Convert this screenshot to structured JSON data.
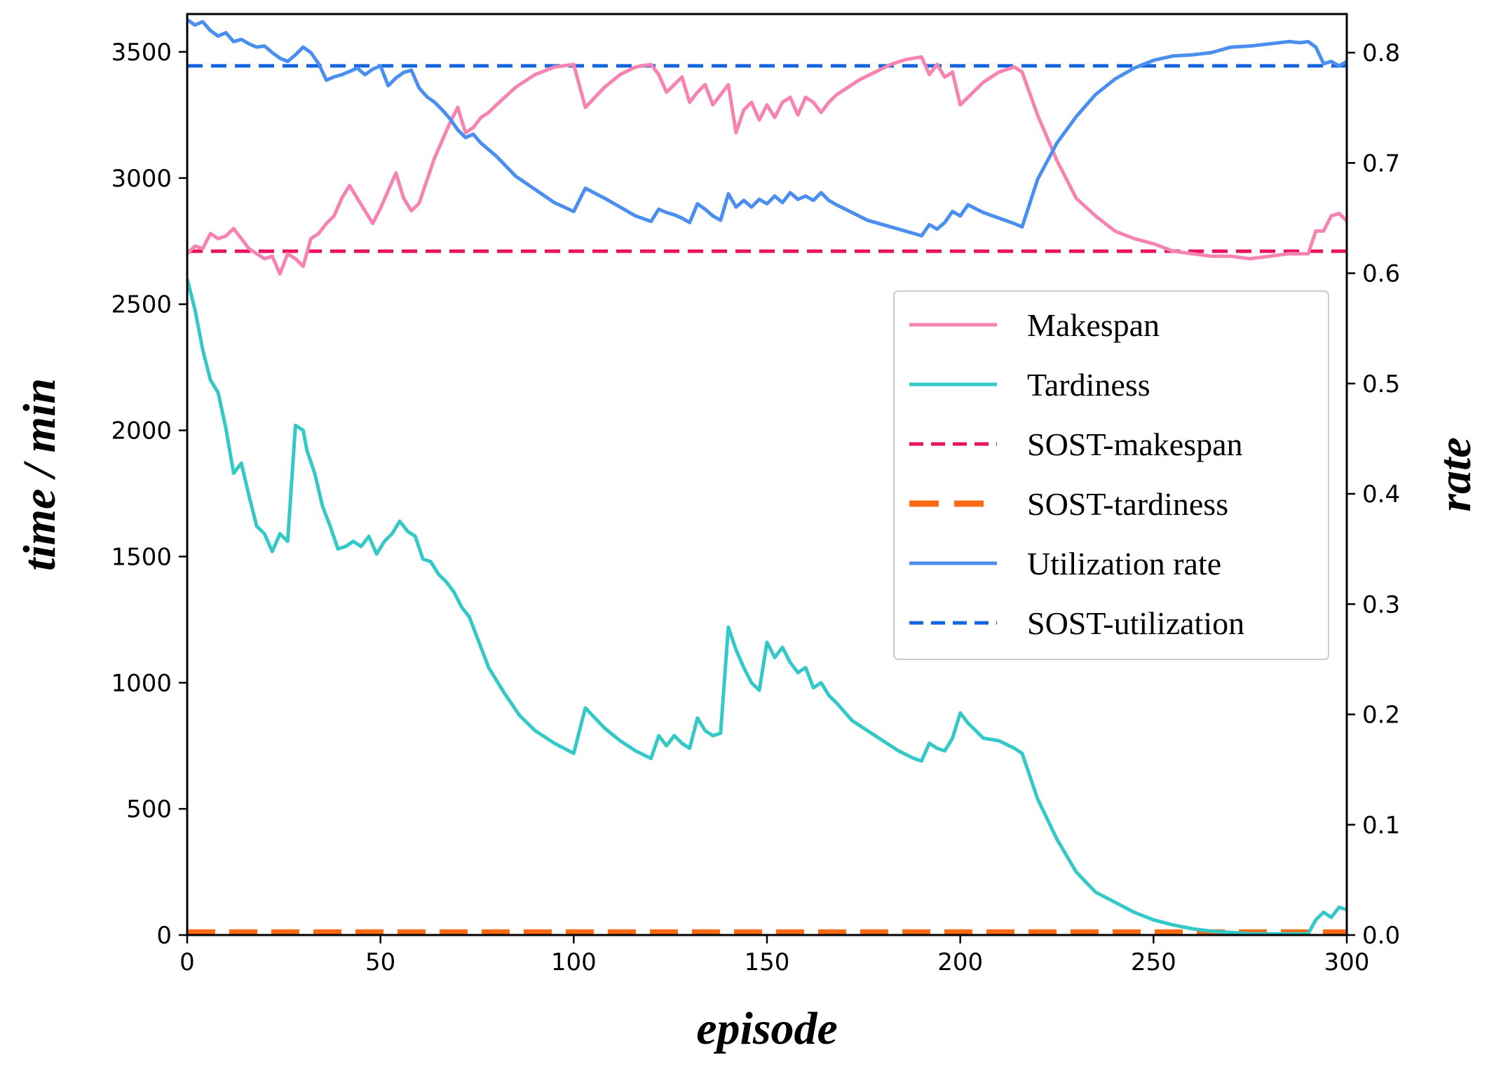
{
  "chart_data": {
    "type": "line",
    "xlabel": "episode",
    "ylabel_left": "time / min",
    "ylabel_right": "rate",
    "xlim": [
      0,
      300
    ],
    "ylim_left": [
      0,
      3650
    ],
    "ylim_right": [
      0,
      0.835
    ],
    "xticks": [
      0,
      50,
      100,
      150,
      200,
      250,
      300
    ],
    "yticks_left": [
      0,
      500,
      1000,
      1500,
      2000,
      2500,
      3000,
      3500
    ],
    "yticks_right": [
      "0.0",
      "0.1",
      "0.2",
      "0.3",
      "0.4",
      "0.5",
      "0.6",
      "0.7",
      "0.8"
    ],
    "legend_position": "center-right",
    "series": [
      {
        "name": "Makespan",
        "axis": "left",
        "color": "#f783b3",
        "style": "solid",
        "x": [
          0,
          2,
          4,
          6,
          8,
          10,
          12,
          14,
          16,
          18,
          20,
          22,
          24,
          26,
          28,
          30,
          32,
          34,
          36,
          38,
          40,
          42,
          44,
          46,
          48,
          50,
          52,
          54,
          56,
          58,
          60,
          62,
          64,
          66,
          68,
          70,
          72,
          74,
          76,
          78,
          80,
          85,
          90,
          95,
          100,
          103,
          108,
          112,
          116,
          120,
          122,
          124,
          126,
          128,
          130,
          132,
          134,
          136,
          138,
          140,
          142,
          144,
          146,
          148,
          150,
          152,
          154,
          156,
          158,
          160,
          162,
          164,
          166,
          168,
          170,
          174,
          178,
          182,
          186,
          190,
          192,
          194,
          196,
          198,
          200,
          202,
          206,
          210,
          214,
          216,
          220,
          225,
          230,
          235,
          240,
          245,
          250,
          255,
          260,
          265,
          270,
          275,
          280,
          285,
          290,
          292,
          294,
          296,
          298,
          300
        ],
        "values": [
          2700,
          2730,
          2720,
          2780,
          2760,
          2770,
          2800,
          2760,
          2720,
          2700,
          2680,
          2690,
          2620,
          2700,
          2680,
          2650,
          2760,
          2780,
          2820,
          2850,
          2920,
          2970,
          2920,
          2870,
          2820,
          2880,
          2950,
          3020,
          2920,
          2870,
          2900,
          2990,
          3080,
          3150,
          3220,
          3280,
          3180,
          3200,
          3240,
          3260,
          3290,
          3360,
          3410,
          3440,
          3450,
          3280,
          3360,
          3410,
          3440,
          3450,
          3410,
          3340,
          3370,
          3400,
          3300,
          3340,
          3370,
          3290,
          3330,
          3370,
          3180,
          3270,
          3300,
          3230,
          3290,
          3240,
          3300,
          3320,
          3250,
          3320,
          3300,
          3260,
          3300,
          3330,
          3350,
          3390,
          3420,
          3450,
          3470,
          3480,
          3410,
          3450,
          3400,
          3420,
          3290,
          3320,
          3380,
          3420,
          3440,
          3420,
          3250,
          3070,
          2920,
          2850,
          2790,
          2760,
          2740,
          2710,
          2700,
          2690,
          2690,
          2680,
          2690,
          2700,
          2700,
          2790,
          2790,
          2850,
          2860,
          2830
        ]
      },
      {
        "name": "Tardiness",
        "axis": "left",
        "color": "#34c8c8",
        "style": "solid",
        "x": [
          0,
          2,
          4,
          6,
          8,
          10,
          12,
          14,
          16,
          18,
          20,
          22,
          24,
          26,
          28,
          30,
          31,
          33,
          35,
          37,
          39,
          41,
          43,
          45,
          47,
          49,
          51,
          53,
          55,
          57,
          59,
          61,
          63,
          65,
          67,
          69,
          71,
          73,
          75,
          78,
          82,
          86,
          90,
          95,
          100,
          103,
          108,
          112,
          116,
          120,
          122,
          124,
          126,
          128,
          130,
          132,
          134,
          136,
          138,
          140,
          142,
          144,
          146,
          148,
          150,
          152,
          154,
          156,
          158,
          160,
          162,
          164,
          166,
          168,
          172,
          176,
          180,
          184,
          188,
          190,
          192,
          194,
          196,
          198,
          200,
          202,
          206,
          210,
          214,
          216,
          220,
          225,
          230,
          235,
          240,
          245,
          250,
          255,
          260,
          265,
          270,
          275,
          280,
          285,
          288,
          290,
          292,
          294,
          296,
          298,
          300
        ],
        "values": [
          2600,
          2480,
          2320,
          2200,
          2150,
          2010,
          1830,
          1870,
          1740,
          1620,
          1590,
          1520,
          1590,
          1560,
          2020,
          2000,
          1920,
          1830,
          1700,
          1620,
          1530,
          1540,
          1560,
          1540,
          1580,
          1510,
          1560,
          1590,
          1640,
          1600,
          1580,
          1490,
          1480,
          1430,
          1400,
          1360,
          1300,
          1260,
          1180,
          1060,
          960,
          870,
          810,
          760,
          720,
          900,
          820,
          770,
          730,
          700,
          790,
          750,
          790,
          760,
          740,
          860,
          810,
          790,
          800,
          1220,
          1130,
          1060,
          1000,
          970,
          1160,
          1100,
          1140,
          1080,
          1040,
          1060,
          980,
          1000,
          950,
          920,
          850,
          810,
          770,
          730,
          700,
          690,
          760,
          740,
          730,
          780,
          880,
          840,
          780,
          770,
          740,
          720,
          540,
          380,
          250,
          170,
          130,
          90,
          60,
          40,
          25,
          15,
          10,
          5,
          5,
          5,
          5,
          5,
          60,
          90,
          70,
          110,
          100
        ]
      },
      {
        "name": "SOST-makespan",
        "axis": "left",
        "color": "#e8125c",
        "style": "dashed",
        "x": [
          0,
          300
        ],
        "values": [
          2710,
          2710
        ]
      },
      {
        "name": "SOST-tardiness",
        "axis": "left",
        "color": "#ff6a13",
        "style": "dashed-thick",
        "x": [
          0,
          300
        ],
        "values": [
          10,
          10
        ]
      },
      {
        "name": "Utilization rate",
        "axis": "right",
        "color": "#4a8ff0",
        "style": "solid",
        "x": [
          0,
          2,
          4,
          6,
          8,
          10,
          12,
          14,
          16,
          18,
          20,
          22,
          24,
          26,
          28,
          30,
          32,
          34,
          36,
          38,
          40,
          42,
          44,
          46,
          48,
          50,
          52,
          54,
          56,
          58,
          60,
          62,
          64,
          66,
          68,
          70,
          72,
          74,
          76,
          78,
          80,
          85,
          90,
          95,
          100,
          103,
          108,
          112,
          116,
          120,
          122,
          124,
          126,
          128,
          130,
          132,
          134,
          136,
          138,
          140,
          142,
          144,
          146,
          148,
          150,
          152,
          154,
          156,
          158,
          160,
          162,
          164,
          166,
          168,
          172,
          176,
          180,
          184,
          188,
          190,
          192,
          194,
          196,
          198,
          200,
          202,
          206,
          210,
          214,
          216,
          220,
          225,
          230,
          235,
          240,
          245,
          250,
          255,
          260,
          265,
          270,
          275,
          280,
          285,
          288,
          290,
          292,
          294,
          296,
          298,
          300
        ],
        "values": [
          0.83,
          0.825,
          0.828,
          0.82,
          0.815,
          0.818,
          0.81,
          0.812,
          0.808,
          0.805,
          0.806,
          0.8,
          0.795,
          0.792,
          0.798,
          0.805,
          0.8,
          0.79,
          0.775,
          0.778,
          0.78,
          0.783,
          0.786,
          0.78,
          0.785,
          0.788,
          0.77,
          0.777,
          0.782,
          0.784,
          0.768,
          0.76,
          0.755,
          0.748,
          0.74,
          0.73,
          0.723,
          0.726,
          0.718,
          0.712,
          0.706,
          0.688,
          0.676,
          0.664,
          0.656,
          0.677,
          0.668,
          0.66,
          0.652,
          0.647,
          0.658,
          0.655,
          0.653,
          0.65,
          0.646,
          0.663,
          0.658,
          0.652,
          0.648,
          0.672,
          0.66,
          0.666,
          0.66,
          0.667,
          0.663,
          0.67,
          0.664,
          0.673,
          0.667,
          0.67,
          0.666,
          0.673,
          0.666,
          0.662,
          0.655,
          0.648,
          0.644,
          0.64,
          0.636,
          0.634,
          0.644,
          0.64,
          0.646,
          0.656,
          0.652,
          0.662,
          0.655,
          0.65,
          0.645,
          0.642,
          0.685,
          0.718,
          0.742,
          0.762,
          0.776,
          0.786,
          0.793,
          0.797,
          0.798,
          0.8,
          0.805,
          0.806,
          0.808,
          0.81,
          0.809,
          0.81,
          0.805,
          0.79,
          0.792,
          0.788,
          0.792
        ]
      },
      {
        "name": "SOST-utilization",
        "axis": "right",
        "color": "#1565e0",
        "style": "dashed",
        "x": [
          0,
          300
        ],
        "values": [
          0.788,
          0.788
        ]
      }
    ]
  }
}
